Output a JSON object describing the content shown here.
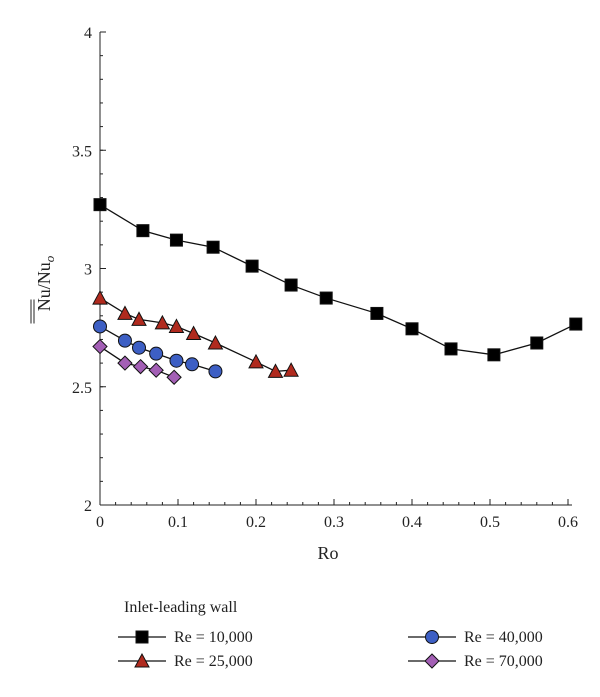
{
  "chart_data": {
    "type": "line",
    "xlabel": "Ro",
    "ylabel_main": "Nu",
    "ylabel_sub": "Nu",
    "ylabel_sub_index": "o",
    "xlim": [
      0,
      0.6
    ],
    "ylim": [
      2,
      4
    ],
    "xticks": [
      {
        "value": 0,
        "label": "0"
      },
      {
        "value": 0.1,
        "label": "0.1"
      },
      {
        "value": 0.2,
        "label": "0.2"
      },
      {
        "value": 0.3,
        "label": "0.3"
      },
      {
        "value": 0.4,
        "label": "0.4"
      },
      {
        "value": 0.5,
        "label": "0.5"
      },
      {
        "value": 0.6,
        "label": "0.6"
      }
    ],
    "yticks": [
      {
        "value": 2,
        "label": "2"
      },
      {
        "value": 2.5,
        "label": "2.5"
      },
      {
        "value": 3,
        "label": "3"
      },
      {
        "value": 3.5,
        "label": "3.5"
      },
      {
        "value": 4,
        "label": "4"
      }
    ],
    "grid": false,
    "legend_title": "Inlet-leading wall",
    "legend_position": "bottom",
    "series": [
      {
        "name": "Re = 10,000",
        "marker": "square",
        "color": "#000000",
        "x": [
          0,
          0.055,
          0.098,
          0.145,
          0.195,
          0.245,
          0.29,
          0.355,
          0.4,
          0.45,
          0.505,
          0.56,
          0.61
        ],
        "y": [
          3.27,
          3.16,
          3.12,
          3.09,
          3.01,
          2.93,
          2.875,
          2.81,
          2.745,
          2.66,
          2.635,
          2.685,
          2.765
        ]
      },
      {
        "name": "Re = 25,000",
        "marker": "triangle",
        "color": "#b02a1e",
        "x": [
          0,
          0.032,
          0.05,
          0.08,
          0.098,
          0.12,
          0.148,
          0.2,
          0.225,
          0.245
        ],
        "y": [
          2.875,
          2.81,
          2.785,
          2.77,
          2.755,
          2.725,
          2.685,
          2.605,
          2.565,
          2.57
        ]
      },
      {
        "name": "Re = 40,000",
        "marker": "circle",
        "color": "#3d5fc4",
        "x": [
          0,
          0.032,
          0.05,
          0.072,
          0.098,
          0.118,
          0.148
        ],
        "y": [
          2.755,
          2.695,
          2.665,
          2.64,
          2.61,
          2.595,
          2.565
        ]
      },
      {
        "name": "Re = 70,000",
        "marker": "diamond",
        "color": "#a35fb5",
        "x": [
          0,
          0.032,
          0.052,
          0.072,
          0.095
        ],
        "y": [
          2.67,
          2.6,
          2.585,
          2.57,
          2.54
        ]
      }
    ]
  }
}
